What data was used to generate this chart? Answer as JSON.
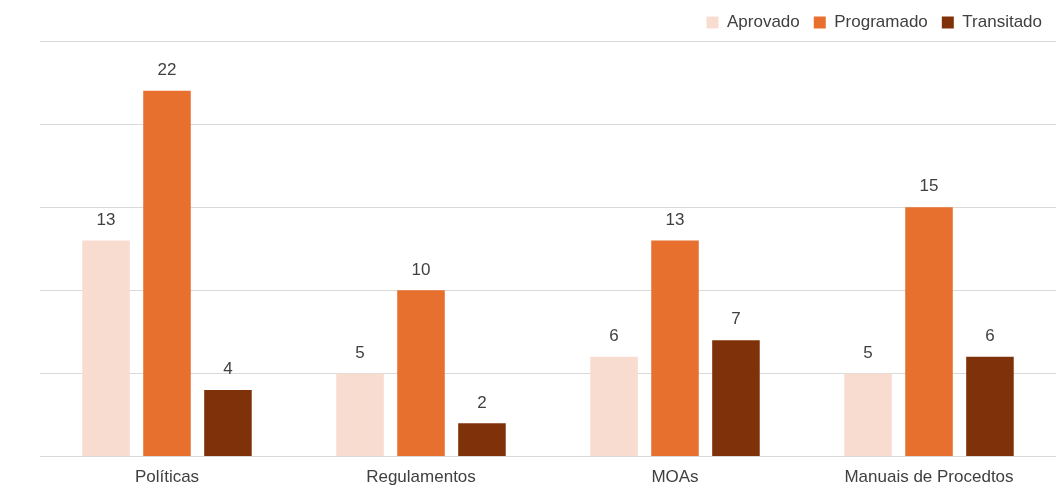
{
  "chart_data": {
    "type": "bar",
    "categories": [
      "Políticas",
      "Regulamentos",
      "MOAs",
      "Manuais de Procedtos"
    ],
    "series": [
      {
        "name": "Aprovado",
        "color": "#f8dcd0",
        "values": [
          13,
          5,
          6,
          5
        ]
      },
      {
        "name": "Programado",
        "color": "#e8702f",
        "values": [
          22,
          10,
          13,
          15
        ]
      },
      {
        "name": "Transitado",
        "color": "#7f3209",
        "values": [
          4,
          2,
          7,
          6
        ]
      }
    ],
    "ylim": [
      0,
      25
    ],
    "yticks": [
      {
        "value": 0,
        "label": null
      },
      {
        "value": 5,
        "label": null
      },
      {
        "value": 10,
        "label": null
      },
      {
        "value": 15,
        "label": null
      },
      {
        "value": 20,
        "label": null
      },
      {
        "value": 25,
        "label": null
      }
    ],
    "tick_labels": "x",
    "grid": "y",
    "legend": "top right",
    "data_labels": true
  }
}
